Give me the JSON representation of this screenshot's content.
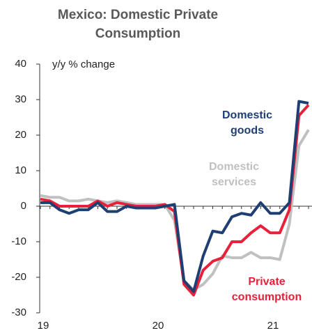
{
  "chart_data": {
    "type": "line",
    "title": "Mexico: Domestic Private Consumption",
    "y_label": "y/y % change",
    "categories": [
      "19",
      null,
      null,
      null,
      null,
      null,
      null,
      null,
      null,
      null,
      null,
      null,
      "20",
      null,
      null,
      null,
      null,
      null,
      null,
      null,
      null,
      null,
      null,
      null,
      "21",
      null,
      null,
      null,
      null
    ],
    "series": [
      {
        "name": "Domestic services",
        "color": "#c0c0c0",
        "values": [
          3,
          2.5,
          2.5,
          1.5,
          1.5,
          2,
          1.5,
          1,
          1.5,
          1,
          0.5,
          0.5,
          0.5,
          0.5,
          -4,
          -21,
          -23.5,
          -22,
          -19,
          -14,
          -14.5,
          -14.5,
          -13,
          -14.5,
          -14.5,
          -15,
          -5,
          17,
          21.5
        ]
      },
      {
        "name": "Private consumption",
        "color": "#e8203a",
        "values": [
          2,
          1.5,
          0,
          0,
          0,
          0,
          1.5,
          0,
          1,
          0.5,
          0,
          0,
          0,
          0.5,
          -1.5,
          -22,
          -25,
          -18,
          -15.5,
          -14.5,
          -10,
          -10,
          -7.5,
          -5.5,
          -7.5,
          -7.5,
          -1,
          25.5,
          28.5
        ]
      },
      {
        "name": "Domestic goods",
        "color": "#1f3f73",
        "values": [
          1,
          1,
          -1,
          -2,
          -1,
          -1,
          1,
          -1.5,
          -1.5,
          0,
          -0.5,
          -0.5,
          -0.5,
          0,
          0.5,
          -21,
          -24,
          -14,
          -7,
          -7.5,
          -3,
          -2,
          -2.5,
          1,
          -2,
          -2,
          1,
          29.5,
          29
        ]
      }
    ],
    "ylim": [
      -30,
      40
    ],
    "yticks": [
      -30,
      -20,
      -10,
      0,
      10,
      20,
      30,
      40
    ]
  }
}
